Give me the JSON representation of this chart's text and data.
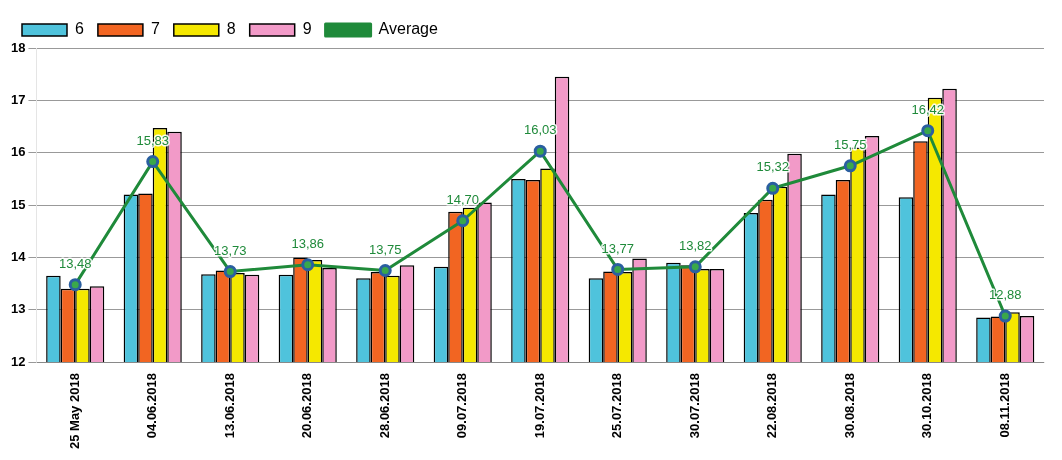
{
  "chart_data": {
    "type": "bar",
    "categories": [
      "25 May 2018",
      "04.06.2018",
      "13.06.2018",
      "20.06.2018",
      "28.06.2018",
      "09.07.2018",
      "19.07.2018",
      "25.07.2018",
      "30.07.2018",
      "22.08.2018",
      "30.08.2018",
      "30.10.2018",
      "08.11.2018"
    ],
    "series": [
      {
        "name": "6",
        "color": "#4fc3dc",
        "values": [
          13.65,
          15.2,
          13.68,
          13.67,
          13.6,
          13.82,
          15.5,
          13.6,
          13.9,
          14.85,
          15.2,
          15.15,
          12.85
        ]
      },
      {
        "name": "7",
        "color": "#f26522",
        "values": [
          13.4,
          15.22,
          13.75,
          14.0,
          13.72,
          14.87,
          15.48,
          13.73,
          13.85,
          15.1,
          15.48,
          16.22,
          12.87
        ]
      },
      {
        "name": "8",
        "color": "#f5e800",
        "values": [
          13.4,
          16.47,
          13.7,
          13.95,
          13.65,
          14.95,
          15.7,
          13.72,
          13.78,
          15.35,
          16.1,
          17.05,
          12.95
        ]
      },
      {
        "name": "9",
        "color": "#f29ac8",
        "values": [
          13.45,
          16.4,
          13.67,
          13.8,
          13.85,
          15.05,
          17.45,
          13.98,
          13.78,
          15.98,
          16.32,
          17.22,
          12.88
        ]
      },
      {
        "name": "Average",
        "type": "line",
        "color": "#1f8a3a",
        "marker": "circle",
        "values": [
          13.48,
          15.83,
          13.73,
          13.86,
          13.75,
          14.7,
          16.03,
          13.77,
          13.82,
          15.32,
          15.75,
          16.42,
          12.88
        ],
        "value_labels": [
          "13,48",
          "15,83",
          "13,73",
          "13,86",
          "13,75",
          "14,70",
          "16,03",
          "13,77",
          "13,82",
          "15,32",
          "15,75",
          "16,42",
          "12,88"
        ]
      }
    ],
    "ylim": [
      12,
      18
    ],
    "yticks": [
      12,
      13,
      14,
      15,
      16,
      17,
      18
    ],
    "grid": "y",
    "legend": "top left"
  }
}
